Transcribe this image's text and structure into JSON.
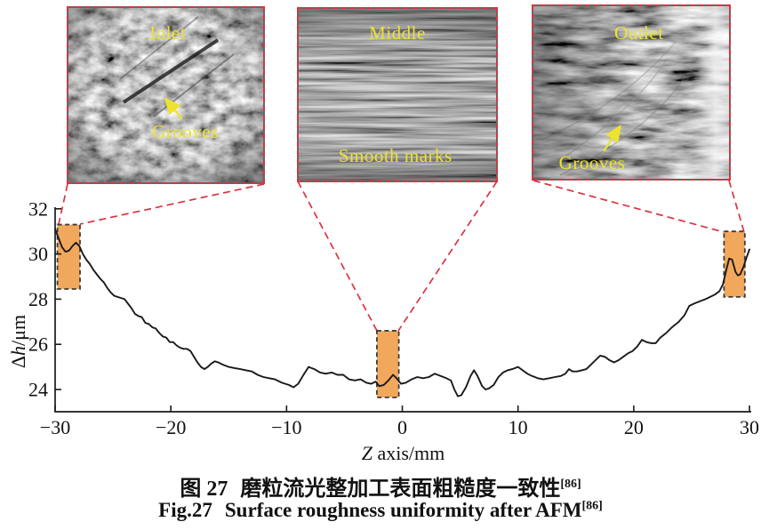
{
  "figure": {
    "caption_cn": {
      "label": "图 27",
      "text": "磨粒流光整加工表面粗糙度一致性",
      "ref": "[86]"
    },
    "caption_en": {
      "label": "Fig.27",
      "text": "Surface roughness uniformity after AFM",
      "ref": "[86]"
    }
  },
  "micrographs": [
    {
      "id": "inlet",
      "title": "Inlet",
      "annotation": "Grooves"
    },
    {
      "id": "middle",
      "title": "Middle",
      "annotation": "Smooth marks"
    },
    {
      "id": "outlet",
      "title": "Outlet",
      "annotation": "Grooves"
    }
  ],
  "chart_data": {
    "type": "line",
    "title": "",
    "xlabel": {
      "var": "Z",
      "rest": " axis/mm"
    },
    "ylabel": {
      "delta": "Δ",
      "var": "h",
      "unit": "/μm"
    },
    "xlim": [
      -30,
      30
    ],
    "ylim": [
      23,
      32.2
    ],
    "x_ticks": [
      -30,
      -20,
      -10,
      0,
      10,
      20,
      30
    ],
    "x_tick_labels": [
      "−30",
      "−20",
      "−10",
      "0",
      "10",
      "20",
      "30"
    ],
    "y_ticks": [
      24,
      26,
      28,
      30,
      32
    ],
    "y_tick_labels": [
      "24",
      "26",
      "28",
      "30",
      "32"
    ],
    "grid": false,
    "legend": "none",
    "series": [
      {
        "name": "surface-roughness-profile",
        "color": "#1a1a1a",
        "points": [
          [
            -30,
            31.1
          ],
          [
            -29.7,
            30.7
          ],
          [
            -29.4,
            30.3
          ],
          [
            -29.1,
            30.1
          ],
          [
            -28.8,
            30.15
          ],
          [
            -28.5,
            30.35
          ],
          [
            -28.2,
            30.5
          ],
          [
            -27.9,
            30.35
          ],
          [
            -27.6,
            30.0
          ],
          [
            -27.3,
            29.75
          ],
          [
            -27,
            29.55
          ],
          [
            -26.7,
            29.3
          ],
          [
            -26.4,
            29.1
          ],
          [
            -26.1,
            28.9
          ],
          [
            -25.8,
            28.75
          ],
          [
            -25.5,
            28.5
          ],
          [
            -25.2,
            28.3
          ],
          [
            -24.9,
            28.15
          ],
          [
            -24.6,
            28.1
          ],
          [
            -24.3,
            28.05
          ],
          [
            -24,
            28.0
          ],
          [
            -23.7,
            27.8
          ],
          [
            -23.4,
            27.6
          ],
          [
            -23.1,
            27.35
          ],
          [
            -22.8,
            27.25
          ],
          [
            -22.5,
            27.2
          ],
          [
            -22.2,
            26.95
          ],
          [
            -21.9,
            26.9
          ],
          [
            -21.6,
            26.75
          ],
          [
            -21.3,
            26.7
          ],
          [
            -21,
            26.5
          ],
          [
            -20.7,
            26.35
          ],
          [
            -20.4,
            26.3
          ],
          [
            -20.1,
            26.1
          ],
          [
            -19.8,
            26.1
          ],
          [
            -19.5,
            25.95
          ],
          [
            -19.2,
            25.85
          ],
          [
            -18.9,
            25.8
          ],
          [
            -18.6,
            25.8
          ],
          [
            -18.3,
            25.7
          ],
          [
            -18,
            25.45
          ],
          [
            -17.7,
            25.2
          ],
          [
            -17.4,
            25.0
          ],
          [
            -17.1,
            24.9
          ],
          [
            -16.8,
            25.0
          ],
          [
            -16.5,
            25.15
          ],
          [
            -16.2,
            25.25
          ],
          [
            -15.9,
            25.2
          ],
          [
            -15.5,
            25.1
          ],
          [
            -15,
            25.0
          ],
          [
            -14.5,
            24.95
          ],
          [
            -14,
            24.9
          ],
          [
            -13.5,
            24.85
          ],
          [
            -13,
            24.8
          ],
          [
            -12.5,
            24.65
          ],
          [
            -12,
            24.55
          ],
          [
            -11.5,
            24.5
          ],
          [
            -11,
            24.45
          ],
          [
            -10.4,
            24.3
          ],
          [
            -9.8,
            24.2
          ],
          [
            -9.4,
            24.1
          ],
          [
            -9,
            24.25
          ],
          [
            -8.6,
            24.6
          ],
          [
            -8.1,
            25.0
          ],
          [
            -7.6,
            24.9
          ],
          [
            -7.1,
            24.75
          ],
          [
            -6.6,
            24.7
          ],
          [
            -6.1,
            24.75
          ],
          [
            -5.6,
            24.65
          ],
          [
            -5.1,
            24.65
          ],
          [
            -4.6,
            24.45
          ],
          [
            -4.1,
            24.4
          ],
          [
            -3.6,
            24.45
          ],
          [
            -3.1,
            24.3
          ],
          [
            -2.7,
            24.25
          ],
          [
            -2.3,
            24.35
          ],
          [
            -2,
            24.15
          ],
          [
            -1.6,
            24.2
          ],
          [
            -1.2,
            24.4
          ],
          [
            -0.8,
            24.65
          ],
          [
            -0.5,
            24.5
          ],
          [
            -0.1,
            24.25
          ],
          [
            0.3,
            24.3
          ],
          [
            0.8,
            24.45
          ],
          [
            1.3,
            24.55
          ],
          [
            1.8,
            24.5
          ],
          [
            2.3,
            24.55
          ],
          [
            2.8,
            24.7
          ],
          [
            3.3,
            24.6
          ],
          [
            3.8,
            24.5
          ],
          [
            4.2,
            24.4
          ],
          [
            4.5,
            24.0
          ],
          [
            4.8,
            23.7
          ],
          [
            5.1,
            23.75
          ],
          [
            5.5,
            24.1
          ],
          [
            5.9,
            24.6
          ],
          [
            6.2,
            24.85
          ],
          [
            6.5,
            24.6
          ],
          [
            6.9,
            24.15
          ],
          [
            7.2,
            24.0
          ],
          [
            7.5,
            24.05
          ],
          [
            7.9,
            24.2
          ],
          [
            8.3,
            24.55
          ],
          [
            8.7,
            24.75
          ],
          [
            9.1,
            24.85
          ],
          [
            9.5,
            24.9
          ],
          [
            10,
            25.0
          ],
          [
            10.4,
            24.85
          ],
          [
            10.8,
            24.7
          ],
          [
            11.2,
            24.6
          ],
          [
            11.7,
            24.5
          ],
          [
            12.2,
            24.45
          ],
          [
            12.7,
            24.5
          ],
          [
            13.2,
            24.55
          ],
          [
            13.7,
            24.6
          ],
          [
            14.1,
            24.7
          ],
          [
            14.4,
            24.9
          ],
          [
            14.7,
            24.8
          ],
          [
            15.1,
            24.8
          ],
          [
            15.5,
            24.85
          ],
          [
            15.9,
            24.9
          ],
          [
            16.3,
            25.1
          ],
          [
            16.7,
            25.3
          ],
          [
            17.1,
            25.5
          ],
          [
            17.5,
            25.45
          ],
          [
            17.9,
            25.3
          ],
          [
            18.3,
            25.2
          ],
          [
            18.7,
            25.3
          ],
          [
            19.1,
            25.45
          ],
          [
            19.5,
            25.6
          ],
          [
            19.9,
            25.7
          ],
          [
            20.3,
            25.9
          ],
          [
            20.7,
            26.2
          ],
          [
            21.1,
            26.1
          ],
          [
            21.5,
            26.05
          ],
          [
            21.9,
            26.05
          ],
          [
            22.3,
            26.3
          ],
          [
            22.8,
            26.5
          ],
          [
            23.3,
            26.75
          ],
          [
            23.9,
            27.0
          ],
          [
            24.4,
            27.3
          ],
          [
            24.8,
            27.7
          ],
          [
            25.2,
            27.8
          ],
          [
            25.7,
            27.9
          ],
          [
            26.2,
            28.0
          ],
          [
            26.6,
            28.1
          ],
          [
            27,
            28.2
          ],
          [
            27.4,
            28.35
          ],
          [
            27.7,
            28.65
          ],
          [
            28,
            29.3
          ],
          [
            28.25,
            29.8
          ],
          [
            28.5,
            29.75
          ],
          [
            28.8,
            29.2
          ],
          [
            29,
            29.05
          ],
          [
            29.2,
            29.1
          ],
          [
            29.5,
            29.45
          ],
          [
            29.75,
            29.85
          ],
          [
            30,
            30.2
          ]
        ]
      }
    ],
    "highlight_regions": [
      {
        "name": "inlet-zone",
        "x": [
          -29.8,
          -27.85
        ],
        "y": [
          28.45,
          31.3
        ]
      },
      {
        "name": "middle-zone",
        "x": [
          -2.2,
          -0.3
        ],
        "y": [
          23.65,
          26.6
        ]
      },
      {
        "name": "outlet-zone",
        "x": [
          27.8,
          29.6
        ],
        "y": [
          28.1,
          31.0
        ]
      }
    ],
    "colors": {
      "curve": "#1a1a1a",
      "highlight_fill": "#F2A85C",
      "highlight_border": "#3C3C3C",
      "connector": "#D93440",
      "annotation_yellow": "#EDE32F"
    }
  }
}
